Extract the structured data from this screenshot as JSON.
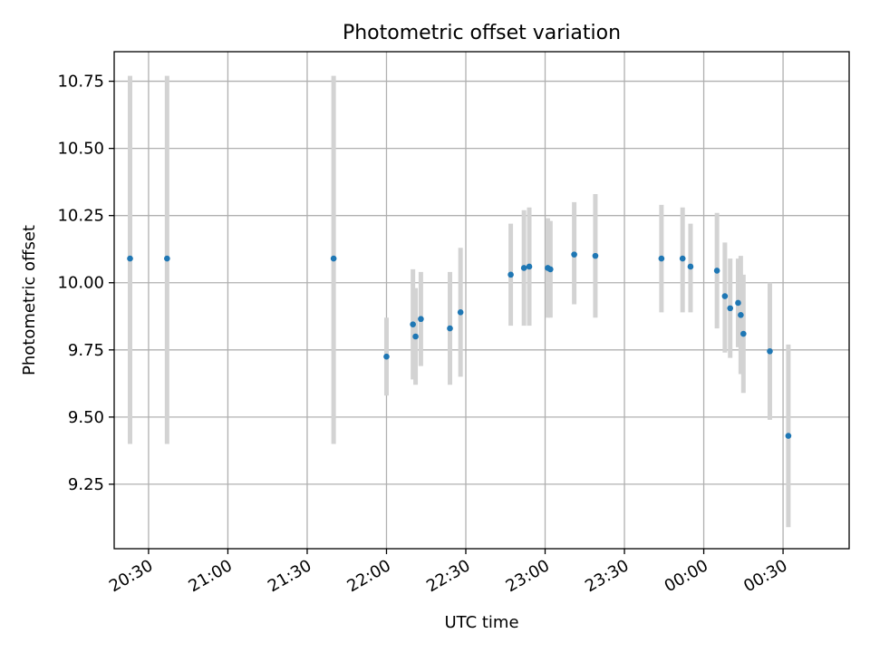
{
  "chart_data": {
    "type": "scatter",
    "title": "Photometric offset variation",
    "xlabel": "UTC time",
    "ylabel": "Photometric offset",
    "x_ticks": [
      "20:30",
      "21:00",
      "21:30",
      "22:00",
      "22:30",
      "23:00",
      "23:30",
      "00:00",
      "00:30"
    ],
    "y_ticks": [
      "9.25",
      "9.50",
      "9.75",
      "10.00",
      "10.25",
      "10.50",
      "10.75"
    ],
    "ylim": [
      9.01,
      10.86
    ],
    "xlim_minutes_since_2000_utc": [
      17,
      295
    ],
    "grid": true,
    "colors": {
      "point": "#1f77b4",
      "errorbar": "#d3d3d3",
      "grid": "#b0b0b0"
    },
    "points": [
      {
        "time": "20:23",
        "y": 10.09,
        "err_low": 9.4,
        "err_high": 10.77
      },
      {
        "time": "20:37",
        "y": 10.09,
        "err_low": 9.4,
        "err_high": 10.77
      },
      {
        "time": "21:40",
        "y": 10.09,
        "err_low": 9.4,
        "err_high": 10.77
      },
      {
        "time": "22:00",
        "y": 9.725,
        "err_low": 9.58,
        "err_high": 9.87
      },
      {
        "time": "22:10",
        "y": 9.845,
        "err_low": 9.64,
        "err_high": 10.05
      },
      {
        "time": "22:11",
        "y": 9.8,
        "err_low": 9.62,
        "err_high": 9.98
      },
      {
        "time": "22:13",
        "y": 9.865,
        "err_low": 9.69,
        "err_high": 10.04
      },
      {
        "time": "22:24",
        "y": 9.83,
        "err_low": 9.62,
        "err_high": 10.04
      },
      {
        "time": "22:28",
        "y": 9.89,
        "err_low": 9.65,
        "err_high": 10.13
      },
      {
        "time": "22:47",
        "y": 10.03,
        "err_low": 9.84,
        "err_high": 10.22
      },
      {
        "time": "22:52",
        "y": 10.055,
        "err_low": 9.84,
        "err_high": 10.27
      },
      {
        "time": "22:54",
        "y": 10.06,
        "err_low": 9.84,
        "err_high": 10.28
      },
      {
        "time": "23:01",
        "y": 10.055,
        "err_low": 9.87,
        "err_high": 10.24
      },
      {
        "time": "23:02",
        "y": 10.05,
        "err_low": 9.87,
        "err_high": 10.23
      },
      {
        "time": "23:11",
        "y": 10.105,
        "err_low": 9.92,
        "err_high": 10.3
      },
      {
        "time": "23:19",
        "y": 10.1,
        "err_low": 9.87,
        "err_high": 10.33
      },
      {
        "time": "23:44",
        "y": 10.09,
        "err_low": 9.89,
        "err_high": 10.29
      },
      {
        "time": "23:52",
        "y": 10.09,
        "err_low": 9.89,
        "err_high": 10.28
      },
      {
        "time": "23:55",
        "y": 10.06,
        "err_low": 9.89,
        "err_high": 10.22
      },
      {
        "time": "00:05",
        "y": 10.045,
        "err_low": 9.83,
        "err_high": 10.26
      },
      {
        "time": "00:08",
        "y": 9.95,
        "err_low": 9.74,
        "err_high": 10.15
      },
      {
        "time": "00:10",
        "y": 9.905,
        "err_low": 9.72,
        "err_high": 10.09
      },
      {
        "time": "00:13",
        "y": 9.925,
        "err_low": 9.76,
        "err_high": 10.09
      },
      {
        "time": "00:14",
        "y": 9.88,
        "err_low": 9.66,
        "err_high": 10.1
      },
      {
        "time": "00:15",
        "y": 9.81,
        "err_low": 9.59,
        "err_high": 10.03
      },
      {
        "time": "00:25",
        "y": 9.745,
        "err_low": 9.49,
        "err_high": 10.0
      },
      {
        "time": "00:32",
        "y": 9.43,
        "err_low": 9.09,
        "err_high": 9.77
      }
    ]
  }
}
